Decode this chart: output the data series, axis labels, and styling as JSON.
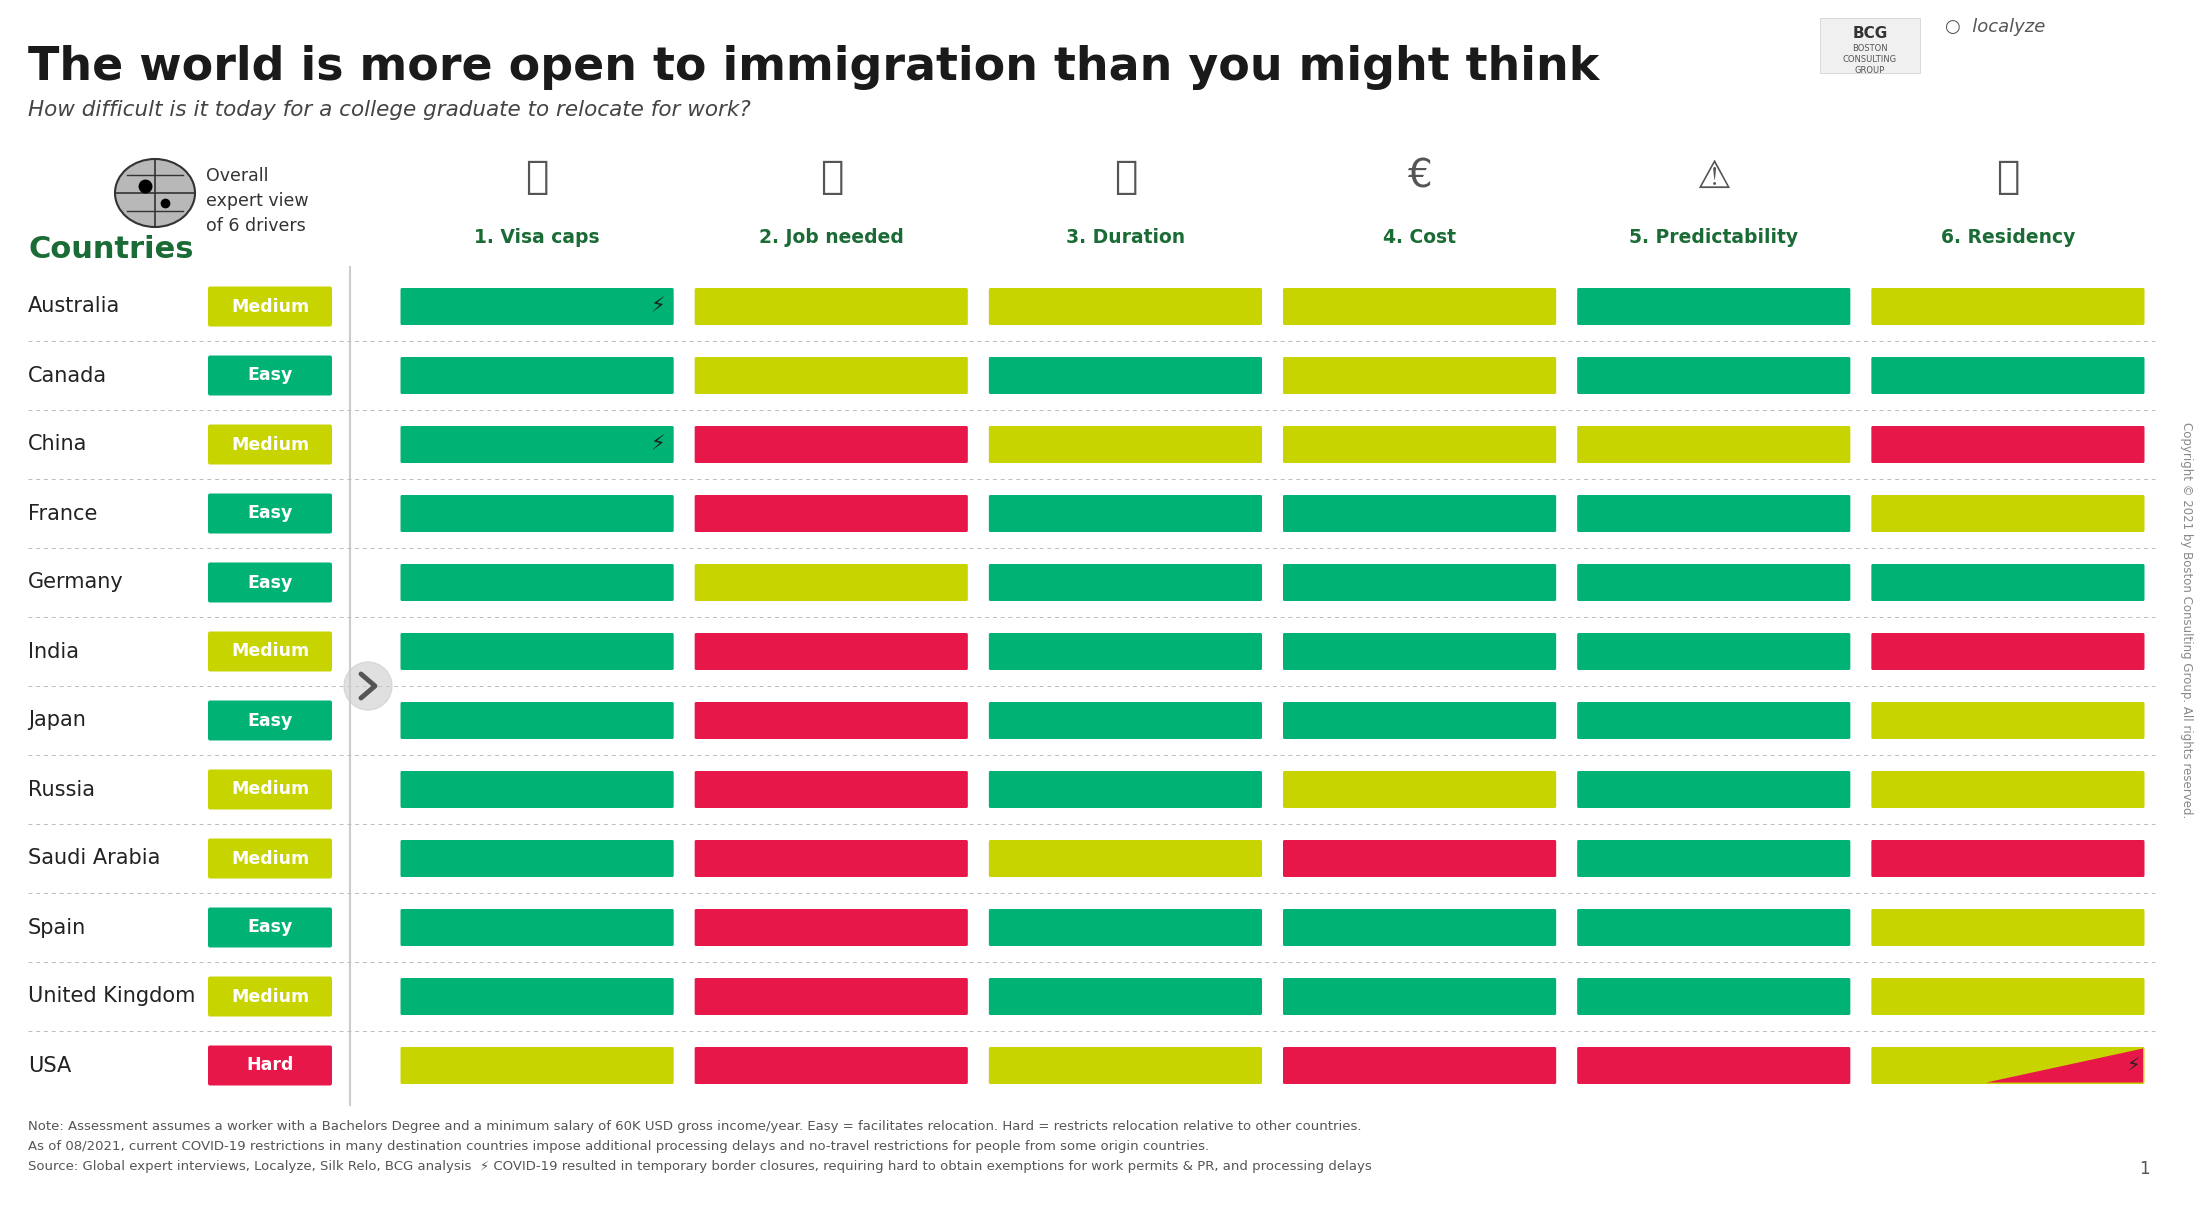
{
  "title": "The world is more open to immigration than you might think",
  "subtitle": "How difficult is it today for a college graduate to relocate for work?",
  "countries": [
    "Australia",
    "Canada",
    "China",
    "France",
    "Germany",
    "India",
    "Japan",
    "Russia",
    "Saudi Arabia",
    "Spain",
    "United Kingdom",
    "USA"
  ],
  "overall_ratings": [
    "Medium",
    "Easy",
    "Medium",
    "Easy",
    "Easy",
    "Medium",
    "Easy",
    "Medium",
    "Medium",
    "Easy",
    "Medium",
    "Hard"
  ],
  "overall_colors": [
    "#c8d400",
    "#00b274",
    "#c8d400",
    "#00b274",
    "#00b274",
    "#c8d400",
    "#00b274",
    "#c8d400",
    "#c8d400",
    "#00b274",
    "#c8d400",
    "#e8174a"
  ],
  "drivers": [
    "1. Visa caps",
    "2. Job needed",
    "3. Duration",
    "4. Cost",
    "5. Predictability",
    "6. Residency"
  ],
  "driver_data": {
    "Australia": [
      "green",
      "yellow",
      "yellow",
      "yellow",
      "green",
      "yellow"
    ],
    "Canada": [
      "green",
      "yellow",
      "green",
      "yellow",
      "green",
      "green"
    ],
    "China": [
      "green",
      "red",
      "yellow",
      "yellow",
      "yellow",
      "red"
    ],
    "France": [
      "green",
      "red",
      "green",
      "green",
      "green",
      "yellow"
    ],
    "Germany": [
      "green",
      "yellow",
      "green",
      "green",
      "green",
      "green"
    ],
    "India": [
      "green",
      "red",
      "green",
      "green",
      "green",
      "red"
    ],
    "Japan": [
      "green",
      "red",
      "green",
      "green",
      "green",
      "yellow"
    ],
    "Russia": [
      "green",
      "red",
      "green",
      "yellow",
      "green",
      "yellow"
    ],
    "Saudi Arabia": [
      "green",
      "red",
      "yellow",
      "red",
      "green",
      "red"
    ],
    "Spain": [
      "green",
      "red",
      "green",
      "green",
      "green",
      "yellow"
    ],
    "United Kingdom": [
      "green",
      "red",
      "green",
      "green",
      "green",
      "yellow"
    ],
    "USA": [
      "yellow",
      "red",
      "yellow",
      "red",
      "red",
      "yellow"
    ]
  },
  "covid_flags_visa": [
    "Australia",
    "China"
  ],
  "color_map": {
    "green": "#00b274",
    "yellow": "#c8d400",
    "red": "#e8174a"
  },
  "note": "Note: Assessment assumes a worker with a Bachelors Degree and a minimum salary of 60K USD gross income/year. Easy = facilitates relocation. Hard = restricts relocation relative to other countries.",
  "note2": "As of 08/2021, current COVID-19 restrictions in many destination countries impose additional processing delays and no-travel restrictions for people from some origin countries.",
  "source": "Source: Global expert interviews, Localyze, Silk Relo, BCG analysis  ⚡ COVID-19 resulted in temporary border closures, requiring hard to obtain exemptions for work permits & PR, and processing delays",
  "copyright": "Copyright © 2021 by Boston Consulting Group. All rights reserved.",
  "background_color": "#ffffff",
  "title_color": "#1a1a1a",
  "countries_label_color": "#1a6b35",
  "driver_label_color": "#1a6b35"
}
